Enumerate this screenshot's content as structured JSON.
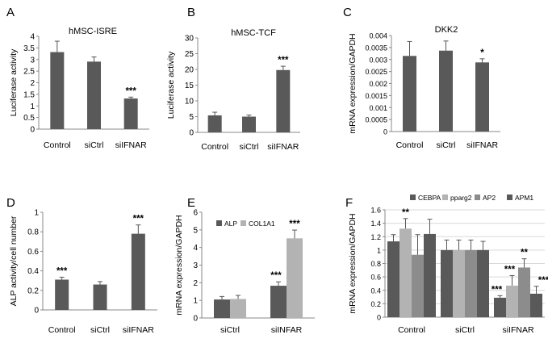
{
  "colors": {
    "dark": "#595959",
    "light": "#b3b3b3",
    "mid": "#8c8c8c",
    "silver": "#d9d9d9",
    "axis": "#888888",
    "grid": "#d9d9d9"
  },
  "chart_data": [
    {
      "panel": "A",
      "type": "bar",
      "title": "hMSC-ISRE",
      "ylabel": "Luciferase activity",
      "categories": [
        "Control",
        "siCtrl",
        "siIFNAR"
      ],
      "ticks": [
        "0",
        "0.5",
        "1",
        "1.5",
        "2",
        "2.5",
        "3",
        "3.5",
        "4"
      ],
      "ylim": [
        0,
        4
      ],
      "grid": false,
      "series": [
        {
          "values": [
            3.32,
            2.91,
            1.32
          ],
          "errors": [
            0.47,
            0.2,
            0.06
          ]
        }
      ],
      "annotations": [
        {
          "cat": 2,
          "text": "***"
        }
      ]
    },
    {
      "panel": "B",
      "type": "bar",
      "title": "hMSC-TCF",
      "ylabel": "Luciferase activity",
      "categories": [
        "Control",
        "siCtrl",
        "siIFNAR"
      ],
      "ticks": [
        "0",
        "5",
        "10",
        "15",
        "20",
        "25",
        "30"
      ],
      "ylim": [
        0,
        30
      ],
      "grid": false,
      "series": [
        {
          "values": [
            5.4,
            5.0,
            19.8
          ],
          "errors": [
            1.0,
            0.5,
            1.2
          ]
        }
      ],
      "annotations": [
        {
          "cat": 2,
          "text": "***"
        }
      ]
    },
    {
      "panel": "C",
      "type": "bar",
      "title": "DKK2",
      "ylabel": "mRNA expression/GAPDH",
      "categories": [
        "Control",
        "siCtrl",
        "siIFNAR"
      ],
      "ticks": [
        "0",
        "0.0005",
        "0.001",
        "0.0015",
        "0.002",
        "0.0025",
        "0.003",
        "0.0035",
        "0.004"
      ],
      "ylim": [
        0,
        0.004
      ],
      "grid": false,
      "series": [
        {
          "values": [
            0.00315,
            0.00337,
            0.00288
          ],
          "errors": [
            0.0006,
            0.0004,
            0.00015
          ]
        }
      ],
      "annotations": [
        {
          "cat": 2,
          "text": "*"
        }
      ]
    },
    {
      "panel": "D",
      "type": "bar",
      "title": "",
      "ylabel": "ALP activity/cell number",
      "categories": [
        "Control",
        "siCtrl",
        "siIFNAR"
      ],
      "ticks": [
        "0",
        "0.2",
        "0.4",
        "0.6",
        "0.8",
        "1"
      ],
      "ylim": [
        0,
        1
      ],
      "grid": false,
      "series": [
        {
          "values": [
            0.31,
            0.26,
            0.78
          ],
          "errors": [
            0.025,
            0.03,
            0.09
          ]
        }
      ],
      "annotations": [
        {
          "cat": 0,
          "text": "***"
        },
        {
          "cat": 2,
          "text": "***"
        }
      ]
    },
    {
      "panel": "E",
      "type": "bar",
      "title": "",
      "ylabel": "mRNA expression/GAPDH",
      "categories": [
        "siCtrl",
        "siINFAR"
      ],
      "ticks": [
        "0",
        "1",
        "2",
        "3",
        "4",
        "5",
        "6"
      ],
      "ylim": [
        0,
        6
      ],
      "grid": false,
      "legend": "top-left",
      "series": [
        {
          "name": "ALP",
          "values": [
            1.05,
            1.83
          ],
          "errors": [
            0.17,
            0.22
          ]
        },
        {
          "name": "COL1A1",
          "values": [
            1.08,
            4.52
          ],
          "errors": [
            0.2,
            0.47
          ]
        }
      ],
      "annotations": [
        {
          "cat": 1,
          "series": 0,
          "text": "***"
        },
        {
          "cat": 1,
          "series": 1,
          "text": "***"
        }
      ]
    },
    {
      "panel": "F",
      "type": "bar",
      "title": "",
      "ylabel": "mRNA expression/GAPDH",
      "categories": [
        "Control",
        "siCtrl",
        "siIFNAR"
      ],
      "ticks": [
        "0",
        "0.2",
        "0.4",
        "0.6",
        "0.8",
        "1",
        "1.2",
        "1.4",
        "1.6"
      ],
      "ylim": [
        0,
        1.6
      ],
      "grid": true,
      "legend": "top",
      "series": [
        {
          "name": "CEBPA",
          "values": [
            1.13,
            1.0,
            0.29
          ],
          "errors": [
            0.1,
            0.15,
            0.03
          ]
        },
        {
          "name": "pparg2",
          "values": [
            1.32,
            1.0,
            0.47
          ],
          "errors": [
            0.15,
            0.15,
            0.15
          ]
        },
        {
          "name": "AP2",
          "values": [
            0.93,
            1.0,
            0.74
          ],
          "errors": [
            0.3,
            0.15,
            0.13
          ]
        },
        {
          "name": "APM1",
          "values": [
            1.24,
            1.0,
            0.35
          ],
          "errors": [
            0.22,
            0.13,
            0.11
          ]
        }
      ],
      "annotations": [
        {
          "cat": 0,
          "series": 1,
          "text": "**"
        },
        {
          "cat": 2,
          "series": 0,
          "text": "***"
        },
        {
          "cat": 2,
          "series": 1,
          "text": "***"
        },
        {
          "cat": 2,
          "series": 2,
          "text": "**"
        },
        {
          "cat": 2,
          "series": 3,
          "text": "***"
        }
      ]
    }
  ]
}
